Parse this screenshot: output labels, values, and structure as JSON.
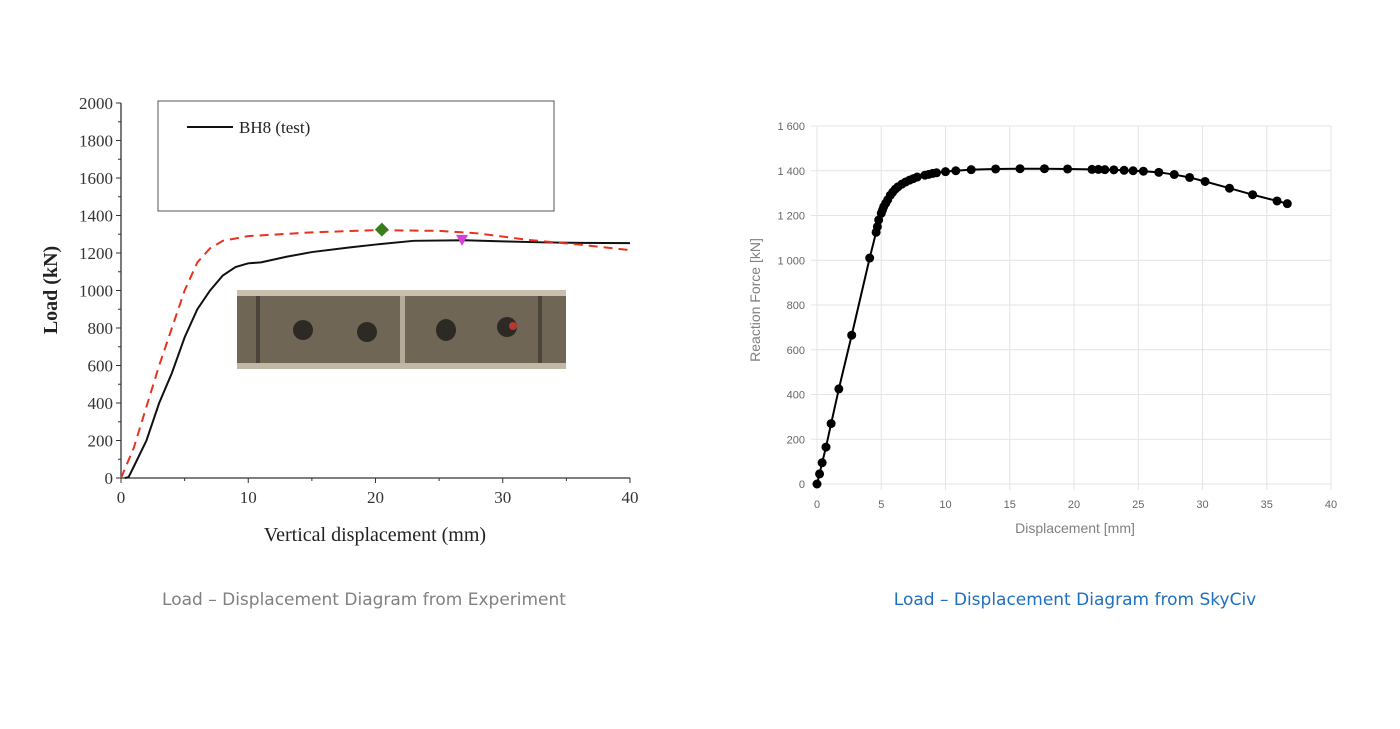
{
  "captions": {
    "left": "Load – Displacement Diagram from Experiment",
    "right": "Load – Displacement Diagram from SkyCiv",
    "left_color": "#808080",
    "right_color": "#1f6fc0"
  },
  "chart_data": [
    {
      "type": "line",
      "xlabel": "Vertical displacement (mm)",
      "ylabel": "Load (kN)",
      "xlim": [
        0,
        40
      ],
      "ylim": [
        0,
        2000
      ],
      "xticks": [
        "0",
        "10",
        "20",
        "30",
        "40"
      ],
      "yticks": [
        "0",
        "200",
        "400",
        "600",
        "800",
        "1000",
        "1200",
        "1400",
        "1600",
        "1800",
        "2000"
      ],
      "grid": false,
      "legend": {
        "position": "top",
        "entries": [
          "BH8 (test)"
        ]
      },
      "inset_image": "photo of deformed steel beam with web openings",
      "series": [
        {
          "name": "BH8 (test)",
          "color": "#111111",
          "style": "solid",
          "x": [
            0.3,
            0.6,
            1,
            2,
            3,
            4,
            5,
            6,
            7,
            8,
            9,
            10,
            11,
            13,
            15,
            18,
            20,
            23,
            27,
            30,
            33,
            36,
            40
          ],
          "y": [
            0,
            5,
            60,
            200,
            400,
            560,
            750,
            900,
            1000,
            1080,
            1125,
            1145,
            1150,
            1180,
            1205,
            1230,
            1245,
            1265,
            1268,
            1262,
            1257,
            1254,
            1253
          ]
        },
        {
          "color": "#e8321e",
          "style": "dashed",
          "x": [
            0,
            1,
            2,
            3,
            4,
            5,
            6,
            7,
            8,
            10,
            15,
            20,
            25,
            28,
            32,
            36,
            40
          ],
          "y": [
            0,
            160,
            380,
            600,
            800,
            1000,
            1150,
            1225,
            1265,
            1290,
            1310,
            1322,
            1318,
            1305,
            1270,
            1245,
            1215
          ]
        }
      ],
      "markers": [
        {
          "shape": "diamond",
          "color": "#3a7d1e",
          "x": 20.5,
          "y": 1325
        },
        {
          "shape": "triangle-down",
          "color": "#d63fd6",
          "x": 26.8,
          "y": 1270
        }
      ]
    },
    {
      "type": "line",
      "xlabel": "Displacement [mm]",
      "ylabel": "Reaction Force [kN]",
      "xlim": [
        0,
        40
      ],
      "ylim": [
        0,
        1600
      ],
      "xticks": [
        "0",
        "5",
        "10",
        "15",
        "20",
        "25",
        "30",
        "35",
        "40"
      ],
      "yticks": [
        "0",
        "200",
        "400",
        "600",
        "800",
        "1 000",
        "1 200",
        "1 400",
        "1 600"
      ],
      "grid": true,
      "series": [
        {
          "color": "#000000",
          "markers": true,
          "x": [
            0,
            0.2,
            0.4,
            0.7,
            1.1,
            1.7,
            2.7,
            4.1,
            4.6,
            4.7,
            4.8,
            5.0,
            5.1,
            5.2,
            5.35,
            5.5,
            5.7,
            5.9,
            6.1,
            6.3,
            6.6,
            6.9,
            7.2,
            7.5,
            7.8,
            8.4,
            8.7,
            9.0,
            9.3,
            10,
            10.8,
            12,
            13.9,
            15.8,
            17.7,
            19.5,
            21.4,
            21.9,
            22.4,
            23.1,
            23.9,
            24.6,
            25.4,
            26.6,
            27.8,
            29,
            30.2,
            32.1,
            33.9,
            35.8,
            36.6
          ],
          "y": [
            0,
            45,
            95,
            165,
            270,
            425,
            665,
            1010,
            1125,
            1150,
            1180,
            1210,
            1225,
            1240,
            1255,
            1270,
            1290,
            1305,
            1318,
            1328,
            1340,
            1350,
            1358,
            1365,
            1372,
            1380,
            1384,
            1388,
            1391,
            1396,
            1400,
            1405,
            1408,
            1409,
            1409,
            1408,
            1406,
            1406,
            1405,
            1404,
            1402,
            1400,
            1398,
            1393,
            1383,
            1370,
            1352,
            1322,
            1293,
            1265,
            1253
          ]
        }
      ]
    }
  ]
}
